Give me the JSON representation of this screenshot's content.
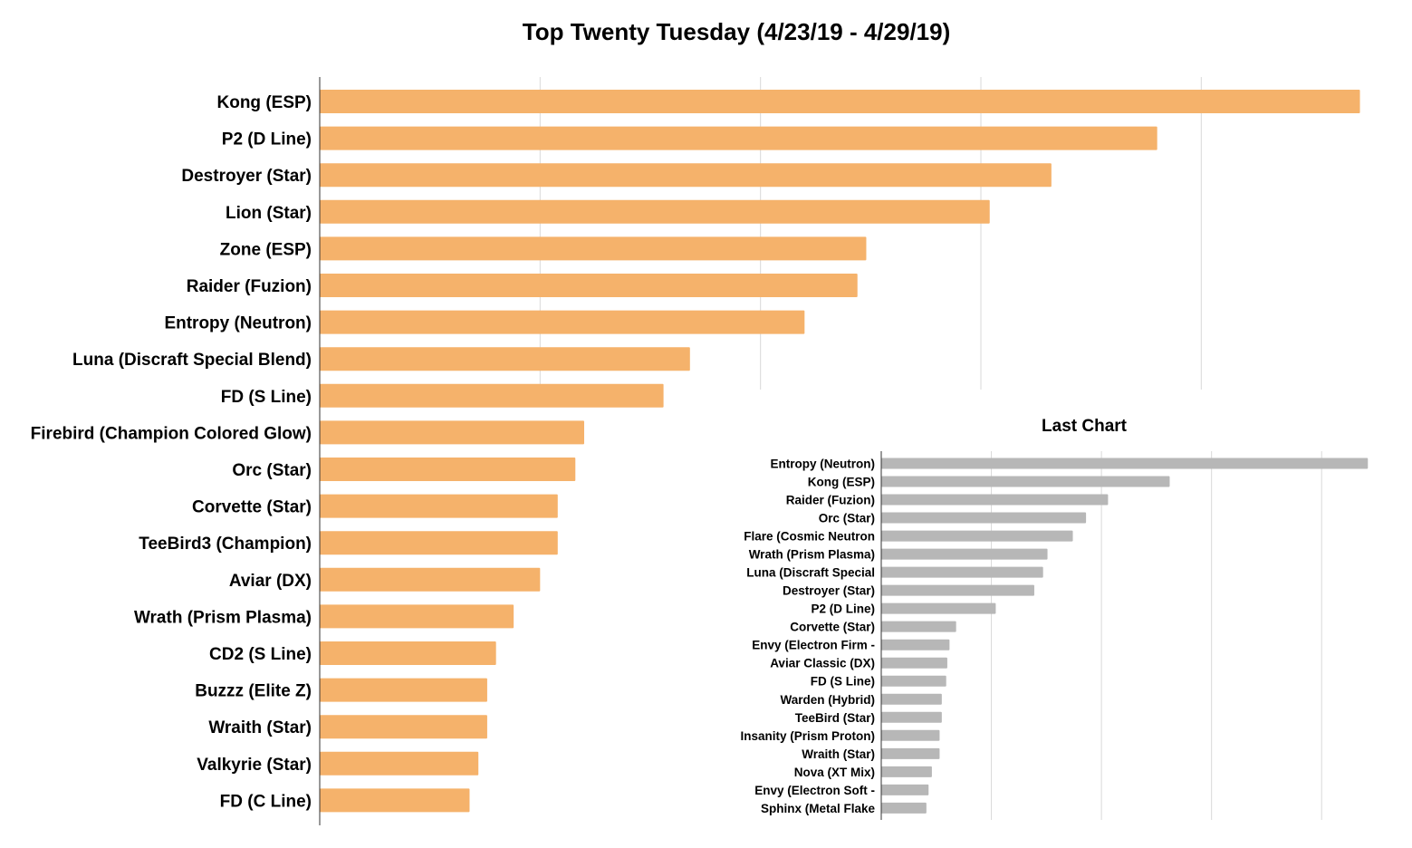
{
  "colors": {
    "main_bar": "#f5b26b",
    "inset_bar": "#b7b7b7",
    "grid": "#d9d9d9",
    "axis": "#333333",
    "text": "#000000"
  },
  "chart_data": [
    {
      "type": "bar",
      "orientation": "horizontal",
      "title": "Top Twenty Tuesday (4/23/19 - 4/29/19)",
      "categories": [
        "Kong (ESP)",
        "P2 (D Line)",
        "Destroyer (Star)",
        "Lion (Star)",
        "Zone (ESP)",
        "Raider (Fuzion)",
        "Entropy (Neutron)",
        "Luna (Discraft Special Blend)",
        "FD (S Line)",
        "Firebird (Champion Colored Glow)",
        "Orc (Star)",
        "Corvette (Star)",
        "TeeBird3 (Champion)",
        "Aviar (DX)",
        "Wrath (Prism Plasma)",
        "CD2 (S Line)",
        "Buzzz (Elite Z)",
        "Wraith (Star)",
        "Valkyrie (Star)",
        "FD (C Line)"
      ],
      "values": [
        236,
        190,
        166,
        152,
        124,
        122,
        110,
        84,
        78,
        60,
        58,
        54,
        54,
        50,
        44,
        40,
        38,
        38,
        36,
        34
      ],
      "xlim": [
        0,
        240
      ],
      "grid": true,
      "tick_labels_shown": false,
      "color": "#f5b26b"
    },
    {
      "type": "bar",
      "orientation": "horizontal",
      "title": "Last Chart",
      "categories": [
        "Entropy (Neutron)",
        "Kong (ESP)",
        "Raider (Fuzion)",
        "Orc (Star)",
        "Flare (Cosmic Neutron",
        "Wrath (Prism Plasma)",
        "Luna (Discraft Special",
        "Destroyer (Star)",
        "P2 (D Line)",
        "Corvette (Star)",
        "Envy (Electron Firm -",
        "Aviar Classic (DX)",
        "FD (S Line)",
        "Warden (Hybrid)",
        "TeeBird (Star)",
        "Insanity (Prism Proton)",
        "Wraith (Star)",
        "Nova (XT Mix)",
        "Envy (Electron Soft -",
        "Sphinx (Metal Flake"
      ],
      "values": [
        44.2,
        26.2,
        20.6,
        18.6,
        17.4,
        15.1,
        14.7,
        13.9,
        10.4,
        6.8,
        6.2,
        6.0,
        5.9,
        5.5,
        5.5,
        5.3,
        5.3,
        4.6,
        4.3,
        4.1
      ],
      "xlim": [
        0,
        45
      ],
      "grid": true,
      "tick_labels_shown": false,
      "color": "#b7b7b7"
    }
  ]
}
